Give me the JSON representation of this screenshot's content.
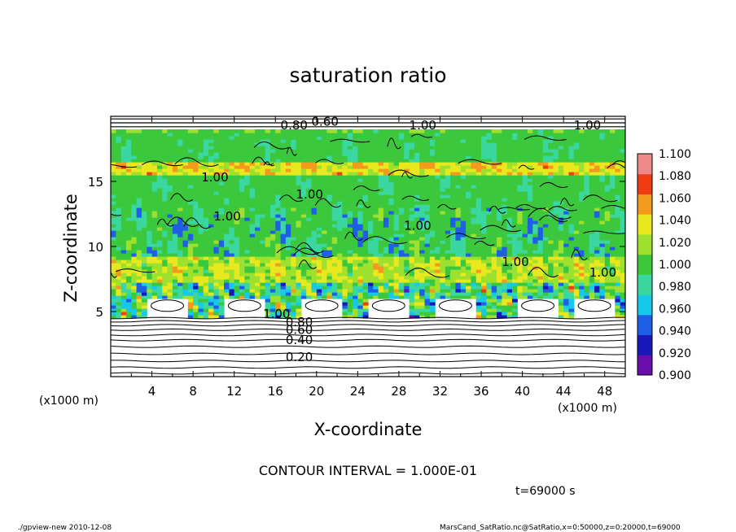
{
  "chart_data": {
    "type": "heatmap",
    "title": "saturation ratio",
    "xlabel": "X-coordinate",
    "ylabel": "Z-coordinate",
    "xunit": "(x1000 m)",
    "yunit": "(x1000 m)",
    "xlim": [
      0,
      50
    ],
    "ylim": [
      0,
      20
    ],
    "xticks": [
      4,
      8,
      12,
      16,
      20,
      24,
      28,
      32,
      36,
      40,
      44,
      48
    ],
    "yticks": [
      5,
      10,
      15
    ],
    "colorbar": {
      "levels": [
        0.9,
        0.92,
        0.94,
        0.96,
        0.98,
        1.0,
        1.02,
        1.04,
        1.06,
        1.08,
        1.1
      ],
      "labels": [
        "0.900",
        "0.920",
        "0.940",
        "0.960",
        "0.980",
        "1.000",
        "1.020",
        "1.040",
        "1.060",
        "1.080",
        "1.100"
      ],
      "colors": [
        "#6a0dad",
        "#1818b8",
        "#1e5fe6",
        "#18c8e8",
        "#3ad7a0",
        "#3cc83c",
        "#9ee02e",
        "#e8e81e",
        "#f39a1e",
        "#ef3c14",
        "#f08a8a"
      ]
    },
    "layers": [
      {
        "z_range": [
          0,
          4.5
        ],
        "value": "below 0.900 (white, stratified contours 0.20–0.80)"
      },
      {
        "z_range": [
          4.5,
          7
        ],
        "value": "mixed 0.90–1.10 with clear pockets near z≈5–6 km"
      },
      {
        "z_range": [
          7,
          19
        ],
        "value": "mostly 1.00–1.02, orange/red bands near z≈8 km and z≈16 km, blue patches near z≈9–13 km"
      },
      {
        "z_range": [
          19,
          20
        ],
        "value": "below 0.900 (contours 0.60–0.80)"
      }
    ],
    "contour_labels": [
      "0.20",
      "0.40",
      "0.60",
      "0.80",
      "1.00",
      "1.00",
      "1.00",
      "1.00",
      "1.00",
      "1.00",
      "1.00",
      "0.80",
      "0.60",
      "1.00",
      "1.00"
    ],
    "contour_interval_text": "CONTOUR INTERVAL = 1.000E-01",
    "time_text": "t=69000 s"
  },
  "footer": {
    "left": "./gpview-new  2010-12-08",
    "right": "MarsCand_SatRatio.nc@SatRatio,x=0:50000,z=0:20000,t=69000"
  }
}
